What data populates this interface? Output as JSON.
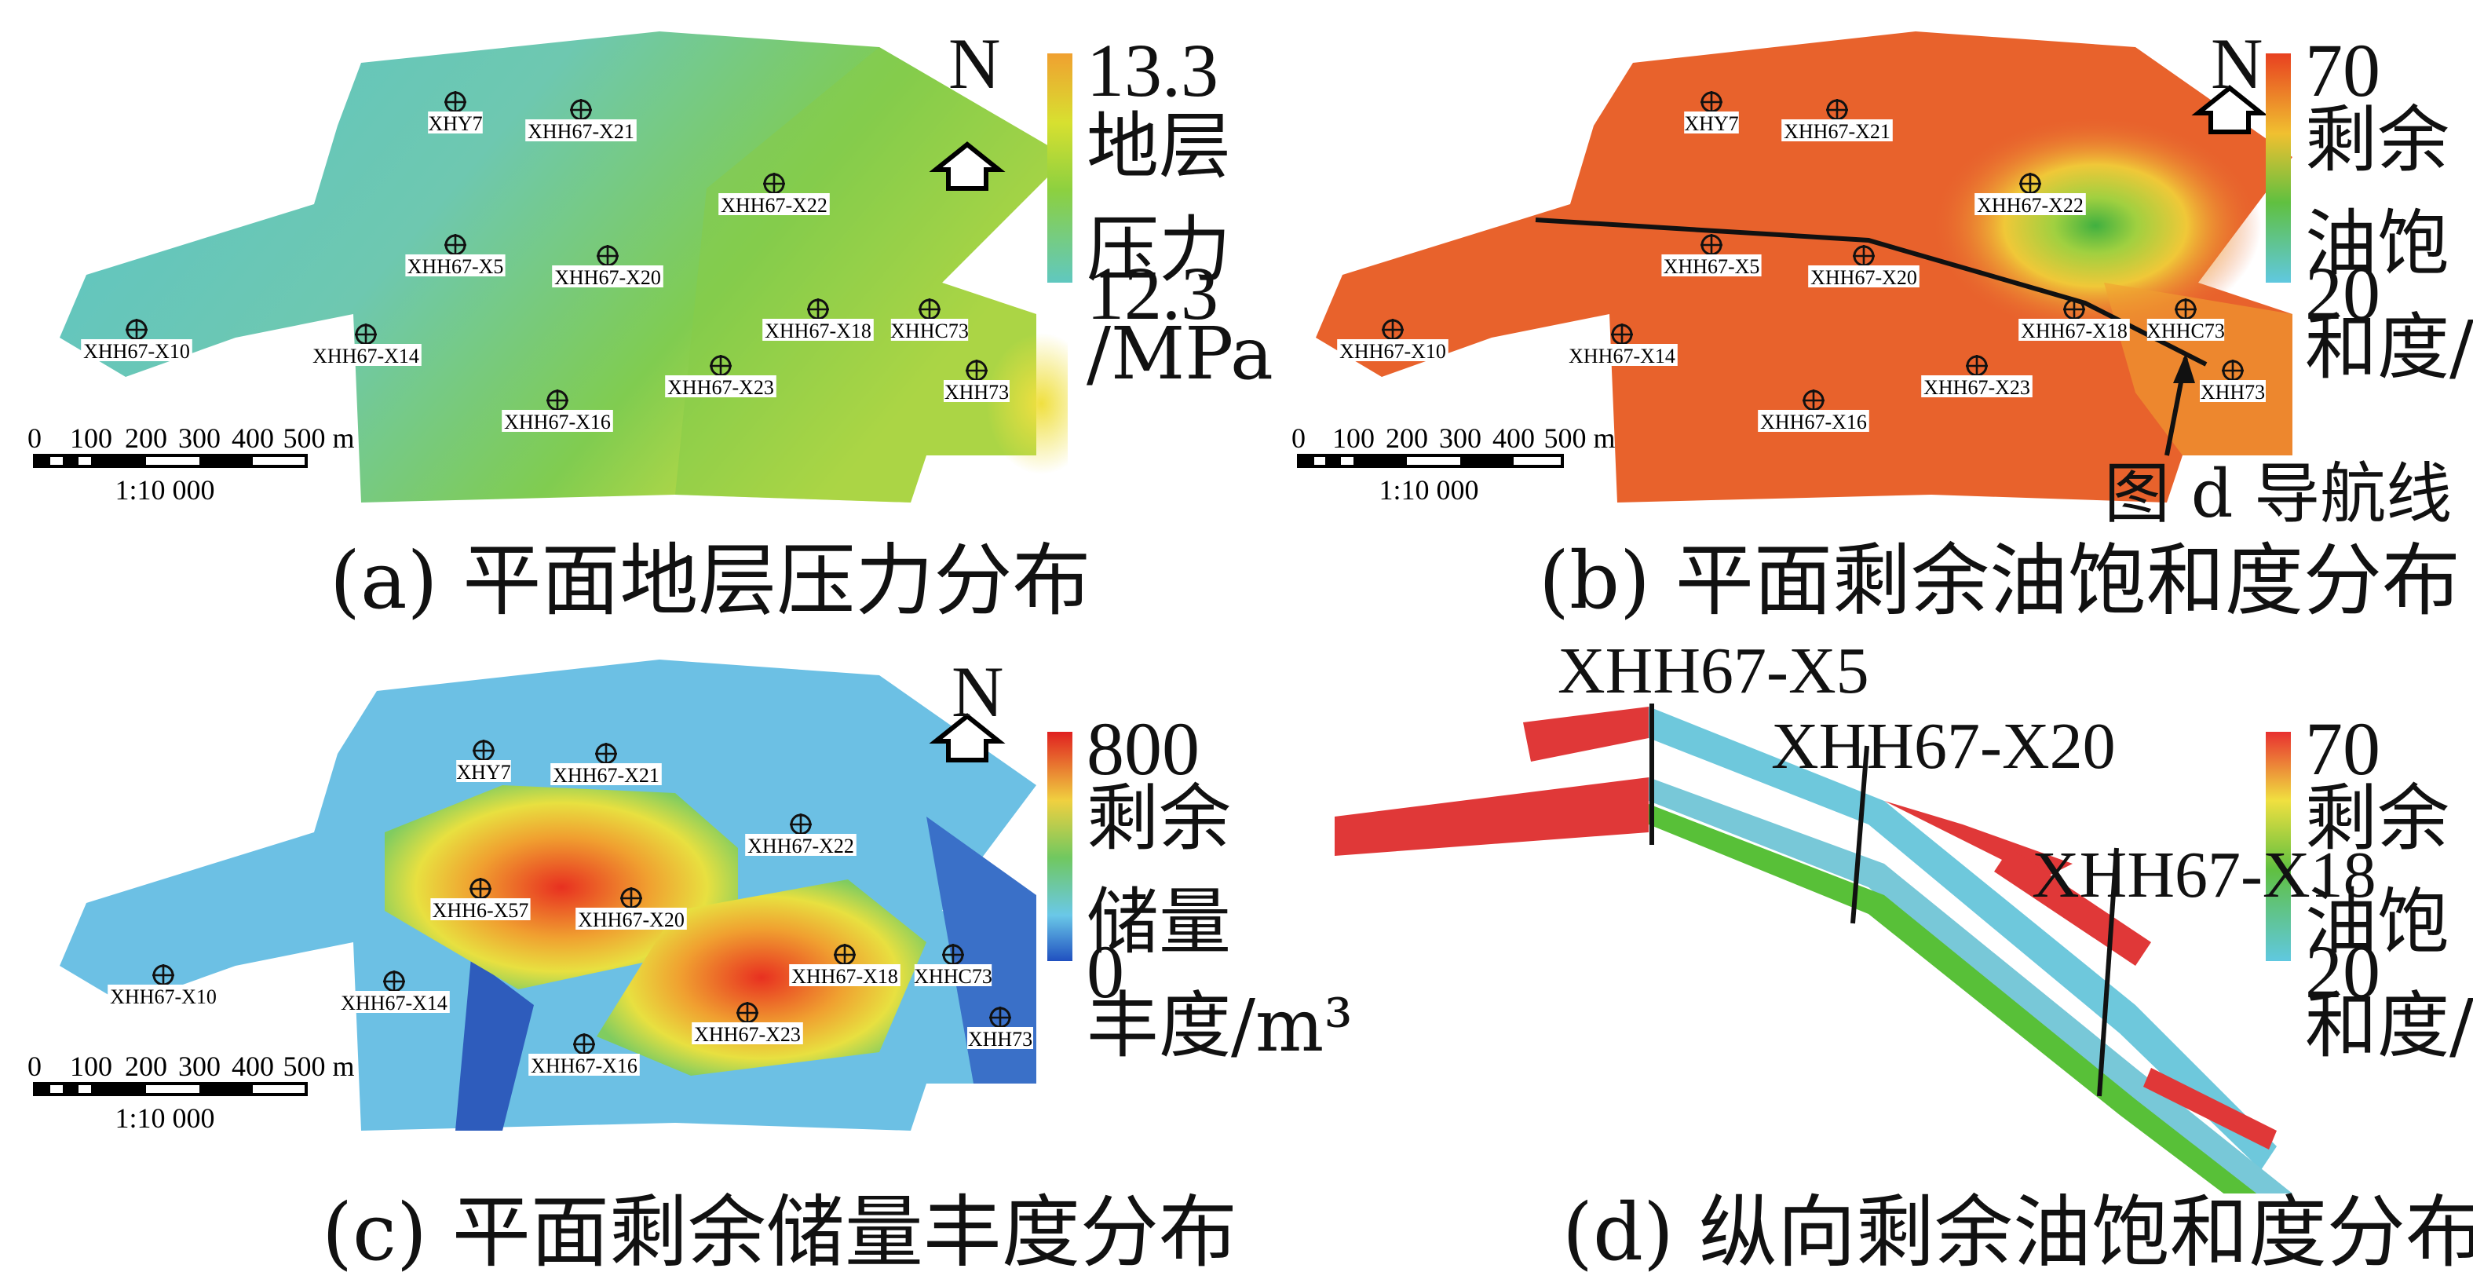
{
  "panels": {
    "a": {
      "caption": "(a) 平面地层压力分布",
      "legend": {
        "title": "地层\n压力\n/MPa",
        "max": "13.3",
        "min": "12.3",
        "colors": [
          "#f0a030",
          "#d8e030",
          "#8cd040",
          "#60c8c0"
        ]
      },
      "wells": [
        "XHY7",
        "XHH67-X21",
        "XHH67-X22",
        "XHH67-X5",
        "XHH67-X20",
        "XHH67-X10",
        "XHH67-X14",
        "XHH67-X18",
        "XHHC73",
        "XHH67-X23",
        "XHH67-X16",
        "XHH73"
      ]
    },
    "b": {
      "caption": "(b) 平面剩余油饱和度分布",
      "legend": {
        "title": "剩余\n油饱\n和度/%",
        "max": "70",
        "min": "20",
        "colors": [
          "#e84020",
          "#f0c030",
          "#60c040",
          "#60c8e0"
        ]
      },
      "annotation": "图 d 导航线",
      "wells": [
        "XHY7",
        "XHH67-X21",
        "XHH67-X22",
        "XHH67-X5",
        "XHH67-X20",
        "XHH67-X10",
        "XHH67-X14",
        "XHH67-X18",
        "XHHC73",
        "XHH67-X23",
        "XHH67-X16",
        "XHH73"
      ]
    },
    "c": {
      "caption": "(c) 平面剩余储量丰度分布",
      "legend": {
        "title": "剩余\n储量\n丰度/m³",
        "max": "800",
        "min": "0",
        "colors": [
          "#e02020",
          "#f0d040",
          "#70c860",
          "#6ac8e8",
          "#2050c0"
        ]
      },
      "wells": [
        "XHY7",
        "XHH67-X21",
        "XHH67-X22",
        "XHH6-X57",
        "XHH67-X20",
        "XHH67-X10",
        "XHH67-X14",
        "XHH67-X18",
        "XHHC73",
        "XHH67-X23",
        "XHH67-X16",
        "XHH73"
      ]
    },
    "d": {
      "caption": "(d) 纵向剩余油饱和度分布",
      "legend": {
        "title": "剩余\n油饱\n和度/%",
        "max": "70",
        "min": "20",
        "colors": [
          "#e83030",
          "#f0e040",
          "#60c040",
          "#60c8e0"
        ]
      },
      "wells": [
        "XHH67-X5",
        "XHH67-X20",
        "XHH67-X18"
      ]
    }
  },
  "north_label": "N",
  "scale_bar": {
    "ticks": [
      "0",
      "100",
      "200",
      "300",
      "400",
      "500 m"
    ],
    "ratio": "1:10 000"
  }
}
